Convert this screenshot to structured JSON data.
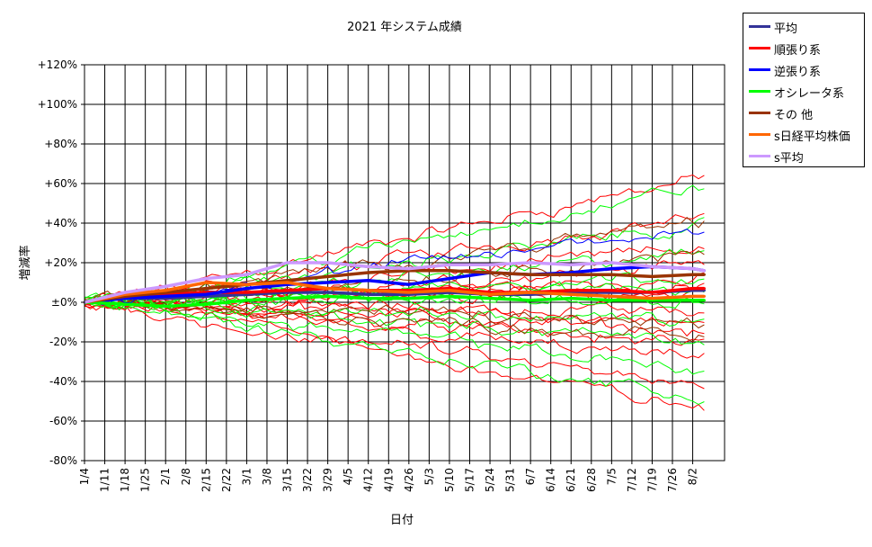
{
  "chart_data": {
    "type": "line",
    "title": "2021 年システム成績",
    "xlabel": "日付",
    "ylabel": "増減率",
    "ylim": [
      -80,
      120
    ],
    "yticks": [
      -80,
      -60,
      -40,
      -20,
      0,
      20,
      40,
      60,
      80,
      100,
      120
    ],
    "ytick_labels": [
      "-80%",
      "-60%",
      "-40%",
      "-20%",
      "±0%",
      "+20%",
      "+40%",
      "+60%",
      "+80%",
      "+100%",
      "+120%"
    ],
    "x_ticks": [
      "1/4",
      "1/11",
      "1/18",
      "1/25",
      "2/1",
      "2/8",
      "2/15",
      "2/22",
      "3/1",
      "3/8",
      "3/15",
      "3/22",
      "3/29",
      "4/5",
      "4/12",
      "4/19",
      "4/26",
      "5/3",
      "5/10",
      "5/17",
      "5/24",
      "5/31",
      "6/7",
      "6/14",
      "6/21",
      "6/28",
      "7/5",
      "7/12",
      "7/19",
      "7/26",
      "8/2"
    ],
    "grid": true,
    "legend_position": "right",
    "series": [
      {
        "name": "平均",
        "color": "#333399",
        "x": [
          "1/4",
          "1/18",
          "2/1",
          "2/15",
          "3/1",
          "3/15",
          "3/29",
          "4/12",
          "4/26",
          "5/10",
          "5/24",
          "6/7",
          "6/21",
          "7/5",
          "7/19",
          "8/2",
          "8/6"
        ],
        "values": [
          0,
          2,
          2,
          3,
          4,
          5,
          5,
          4,
          4,
          5,
          4,
          4,
          5,
          5,
          5,
          6,
          6
        ]
      },
      {
        "name": "順張り系",
        "color": "#ff0000",
        "x": [
          "1/4",
          "1/18",
          "2/1",
          "2/15",
          "3/1",
          "3/15",
          "3/29",
          "4/12",
          "4/26",
          "5/10",
          "5/24",
          "6/7",
          "6/21",
          "7/5",
          "7/19",
          "8/2",
          "8/6"
        ],
        "values": [
          0,
          3,
          4,
          5,
          5,
          6,
          7,
          6,
          6,
          7,
          5,
          5,
          6,
          6,
          5,
          7,
          7
        ]
      },
      {
        "name": "逆張り系",
        "color": "#0000ff",
        "x": [
          "1/4",
          "1/18",
          "2/1",
          "2/15",
          "3/1",
          "3/15",
          "3/29",
          "4/12",
          "4/26",
          "5/10",
          "5/24",
          "6/7",
          "6/21",
          "7/5",
          "7/19",
          "8/2",
          "8/6"
        ],
        "values": [
          0,
          2,
          3,
          4,
          7,
          9,
          10,
          11,
          9,
          12,
          15,
          14,
          15,
          17,
          18,
          17,
          16
        ]
      },
      {
        "name": "オシレータ系",
        "color": "#00ff00",
        "x": [
          "1/4",
          "1/18",
          "2/1",
          "2/15",
          "3/1",
          "3/15",
          "3/29",
          "4/12",
          "4/26",
          "5/10",
          "5/24",
          "6/7",
          "6/21",
          "7/5",
          "7/19",
          "8/2",
          "8/6"
        ],
        "values": [
          0,
          -1,
          -2,
          -1,
          1,
          2,
          3,
          2,
          2,
          3,
          2,
          1,
          2,
          1,
          1,
          1,
          1
        ]
      },
      {
        "name": "その 他",
        "color": "#993300",
        "x": [
          "1/4",
          "1/18",
          "2/1",
          "2/15",
          "3/1",
          "3/15",
          "3/29",
          "4/12",
          "4/26",
          "5/10",
          "5/24",
          "6/7",
          "6/21",
          "7/5",
          "7/19",
          "8/2",
          "8/6"
        ],
        "values": [
          0,
          3,
          5,
          7,
          9,
          11,
          13,
          15,
          16,
          16,
          15,
          14,
          14,
          14,
          13,
          14,
          14
        ]
      },
      {
        "name": "s日経平均株価",
        "color": "#ff6600",
        "x": [
          "1/4",
          "1/18",
          "2/1",
          "2/15",
          "3/1",
          "3/15",
          "3/29",
          "4/12",
          "4/26",
          "5/10",
          "5/24",
          "6/7",
          "6/21",
          "7/5",
          "7/19",
          "8/2",
          "8/6"
        ],
        "values": [
          0,
          4,
          6,
          10,
          9,
          10,
          7,
          6,
          5,
          6,
          4,
          5,
          4,
          3,
          2,
          3,
          3
        ]
      },
      {
        "name": "s平均",
        "color": "#cc99ff",
        "x": [
          "1/4",
          "1/18",
          "2/1",
          "2/15",
          "3/1",
          "3/15",
          "3/29",
          "4/12",
          "4/26",
          "5/10",
          "5/24",
          "6/7",
          "6/21",
          "7/5",
          "7/19",
          "8/2",
          "8/6"
        ],
        "values": [
          0,
          5,
          8,
          12,
          14,
          20,
          20,
          18,
          17,
          19,
          19,
          20,
          19,
          20,
          18,
          17,
          16
        ]
      }
    ]
  }
}
